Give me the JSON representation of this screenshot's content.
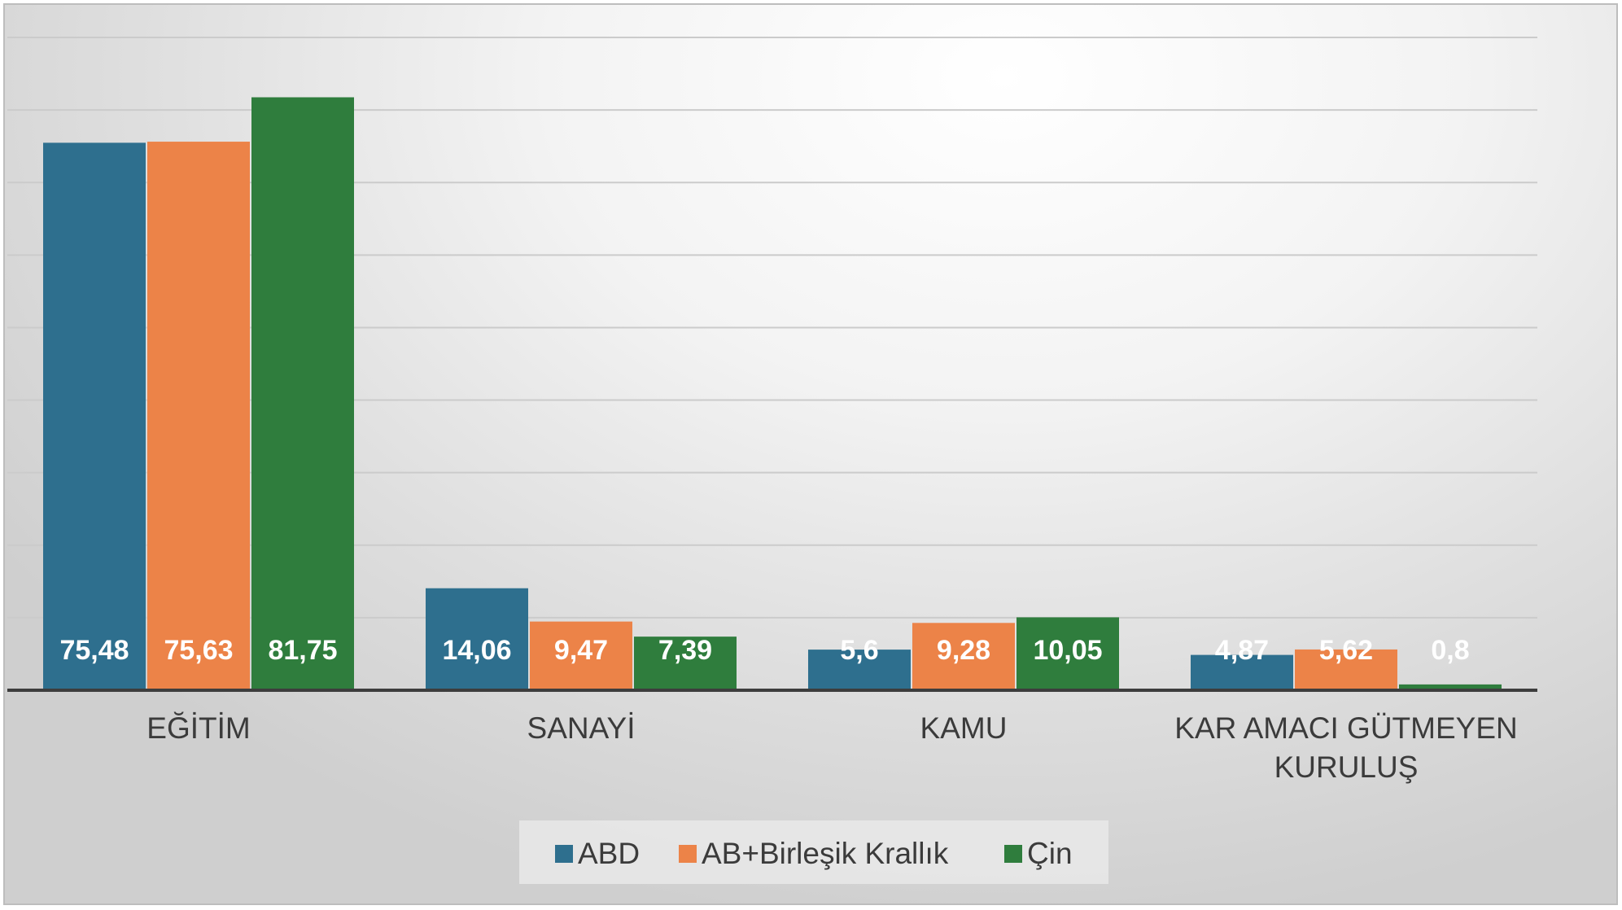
{
  "chart_data": {
    "type": "bar",
    "title": "",
    "xlabel": "",
    "ylabel": "",
    "categories": [
      [
        "EĞİTİM"
      ],
      [
        "SANAYİ"
      ],
      [
        "KAMU"
      ],
      [
        "KAR AMACI GÜTMEYEN",
        "KURULUŞ"
      ]
    ],
    "series": [
      {
        "name": "ABD",
        "color": "#2e6f8e",
        "values": [
          75.48,
          14.06,
          5.6,
          4.87
        ],
        "labels": [
          "75,48",
          "14,06",
          "5,6",
          "4,87"
        ]
      },
      {
        "name": "AB+Birleşik Krallık",
        "color": "#ec8348",
        "values": [
          75.63,
          9.47,
          9.28,
          5.62
        ],
        "labels": [
          "75,63",
          "9,47",
          "9,28",
          "5,62"
        ]
      },
      {
        "name": "Çin",
        "color": "#2f7d3d",
        "values": [
          81.75,
          7.39,
          10.05,
          0.8
        ],
        "labels": [
          "81,75",
          "7,39",
          "10,05",
          "0,8"
        ]
      }
    ],
    "ylim": [
      0,
      90
    ],
    "gridlines": true,
    "axis_labels_shown": false,
    "legend_position": "bottom"
  }
}
